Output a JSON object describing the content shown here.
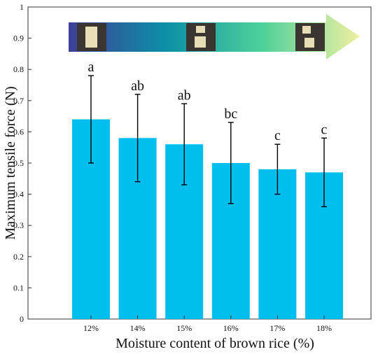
{
  "chart_data": {
    "type": "bar",
    "categories": [
      "12%",
      "14%",
      "15%",
      "16%",
      "17%",
      "18%"
    ],
    "values": [
      0.64,
      0.58,
      0.56,
      0.5,
      0.48,
      0.47
    ],
    "error_bars": [
      0.14,
      0.14,
      0.13,
      0.13,
      0.08,
      0.11
    ],
    "significance_letters": [
      "a",
      "ab",
      "ab",
      "bc",
      "c",
      "c"
    ],
    "xlabel": "Moisture content of brown rice (%)",
    "ylabel": "Maximum tensile force (N)",
    "ylim": [
      0,
      1
    ],
    "yticks": [
      0,
      0.1,
      0.2,
      0.3,
      0.4,
      0.5,
      0.6,
      0.7,
      0.8,
      0.9,
      1
    ],
    "grid": false,
    "bar_color": "#00bfef",
    "inset": {
      "type": "gradient-arrow",
      "colors": [
        "#3f3f99",
        "#0d8fa6",
        "#4fd19a",
        "#f0f0a0"
      ],
      "sample_photos": 3
    }
  }
}
